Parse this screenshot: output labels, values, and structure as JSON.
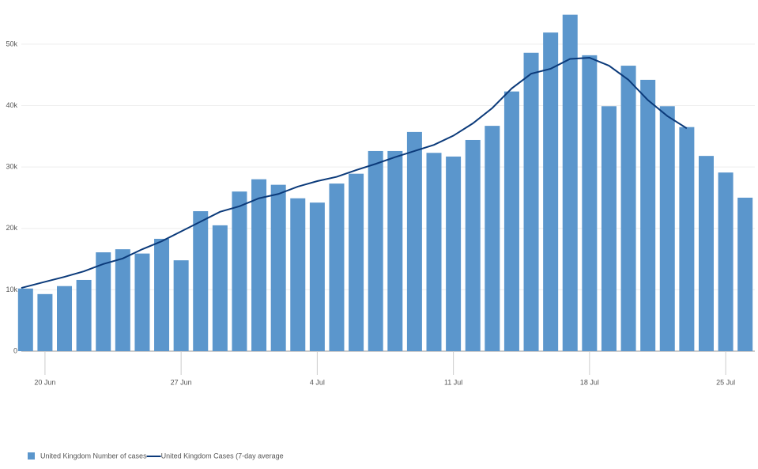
{
  "chart_data": {
    "type": "bar-line",
    "categories": [
      null,
      "20 Jun",
      null,
      null,
      null,
      null,
      null,
      null,
      "27 Jun",
      null,
      null,
      null,
      null,
      null,
      null,
      "4 Jul",
      null,
      null,
      null,
      null,
      null,
      null,
      "11 Jul",
      null,
      null,
      null,
      null,
      null,
      null,
      "18 Jul",
      null,
      null,
      null,
      null,
      null,
      null,
      "25 Jul",
      null
    ],
    "series": [
      {
        "name": "United Kingdom Number of cases",
        "kind": "bar",
        "color": "#5b96cc",
        "values": [
          10200,
          9300,
          10600,
          11600,
          16100,
          16600,
          15900,
          18300,
          14800,
          22800,
          20500,
          26000,
          28000,
          27100,
          24900,
          24200,
          27300,
          28900,
          32600,
          32600,
          35700,
          32300,
          31700,
          34400,
          36700,
          42300,
          48600,
          51900,
          54800,
          48200,
          39900,
          46500,
          44200,
          39900,
          36500,
          31800,
          29100,
          25000
        ]
      },
      {
        "name": "United Kingdom Cases (7-day average",
        "kind": "line",
        "color": "#0b3a7a",
        "values": [
          10300,
          11300,
          12100,
          13000,
          14200,
          15100,
          16600,
          17900,
          19500,
          21100,
          22700,
          23600,
          24900,
          25600,
          26800,
          27700,
          28400,
          29500,
          30500,
          31600,
          32600,
          33600,
          35100,
          37100,
          39600,
          42800,
          45200,
          46000,
          47600,
          47800,
          46500,
          44200,
          40900,
          38300,
          36300,
          null,
          null,
          null
        ]
      }
    ],
    "ylim": [
      0,
      57200
    ],
    "yticks": [
      0,
      {
        "value": 10000,
        "label": "10k"
      },
      {
        "value": 20000,
        "label": "20k"
      },
      {
        "value": 30000,
        "label": "30k"
      },
      {
        "value": 40000,
        "label": "40k"
      },
      {
        "value": 50000,
        "label": "50k"
      }
    ],
    "grid": true
  }
}
